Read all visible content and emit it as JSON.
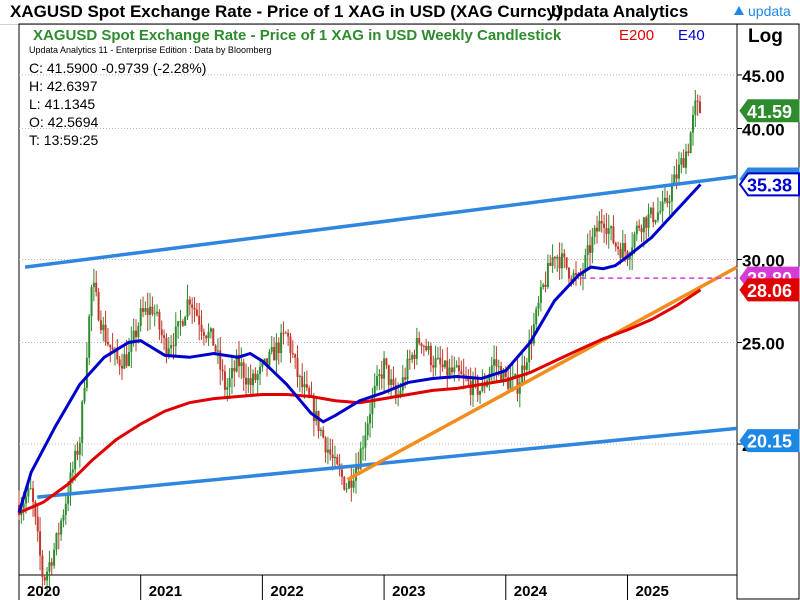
{
  "header": {
    "title": "XAGUSD Spot Exchange Rate - Price of 1 XAG in USD (XAG Curncy)",
    "vendor": "Updata Analytics",
    "logo": "updata"
  },
  "chart_data": {
    "type": "candlestick",
    "title": "XAGUSD Spot Exchange Rate - Price of 1 XAG in USD Weekly Candlestick",
    "subtitle": "Updata Analytics 11 - Enterprise Edition : Data by Bloomberg",
    "scale": "Log",
    "legend": [
      {
        "label": "E200",
        "color": "#e00000"
      },
      {
        "label": "E40",
        "color": "#0000cc"
      }
    ],
    "ohlc_readout": [
      "C: 41.5900  -0.9739 (-2.28%)",
      "H: 42.6397",
      "L: 41.1345",
      "O: 42.5694",
      "T: 13:59:25"
    ],
    "ylim": [
      15,
      46.5
    ],
    "y_ticks": [
      {
        "value": 20,
        "label": "20.00"
      },
      {
        "value": 25,
        "label": "25.00"
      },
      {
        "value": 30,
        "label": "30.00"
      },
      {
        "value": 40,
        "label": "40.00"
      },
      {
        "value": 45,
        "label": "45.00"
      }
    ],
    "x_range": [
      2020.0,
      2025.9
    ],
    "x_ticks": [
      {
        "value": 2020.0,
        "label": "2020"
      },
      {
        "value": 2021.0,
        "label": "2021"
      },
      {
        "value": 2022.0,
        "label": "2022"
      },
      {
        "value": 2023.0,
        "label": "2023"
      },
      {
        "value": 2024.0,
        "label": "2024"
      },
      {
        "value": 2025.0,
        "label": "2025"
      }
    ],
    "grid": true,
    "price_path": [
      [
        2020.0,
        17.5
      ],
      [
        2020.1,
        18.0
      ],
      [
        2020.2,
        14.8
      ],
      [
        2020.3,
        16.0
      ],
      [
        2020.4,
        18.0
      ],
      [
        2020.5,
        20.2
      ],
      [
        2020.55,
        24.0
      ],
      [
        2020.6,
        28.5
      ],
      [
        2020.7,
        25.5
      ],
      [
        2020.8,
        24.0
      ],
      [
        2020.9,
        24.2
      ],
      [
        2021.0,
        26.5
      ],
      [
        2021.1,
        27.0
      ],
      [
        2021.2,
        24.8
      ],
      [
        2021.3,
        25.5
      ],
      [
        2021.4,
        27.7
      ],
      [
        2021.5,
        26.0
      ],
      [
        2021.6,
        25.0
      ],
      [
        2021.7,
        22.5
      ],
      [
        2021.8,
        24.0
      ],
      [
        2021.9,
        22.8
      ],
      [
        2022.0,
        23.5
      ],
      [
        2022.1,
        24.5
      ],
      [
        2022.2,
        25.5
      ],
      [
        2022.3,
        23.0
      ],
      [
        2022.4,
        21.8
      ],
      [
        2022.5,
        20.3
      ],
      [
        2022.6,
        19.0
      ],
      [
        2022.7,
        18.2
      ],
      [
        2022.8,
        19.5
      ],
      [
        2022.9,
        22.0
      ],
      [
        2023.0,
        23.8
      ],
      [
        2023.1,
        22.0
      ],
      [
        2023.2,
        23.8
      ],
      [
        2023.3,
        25.3
      ],
      [
        2023.4,
        24.0
      ],
      [
        2023.5,
        23.5
      ],
      [
        2023.6,
        23.3
      ],
      [
        2023.7,
        22.8
      ],
      [
        2023.8,
        22.5
      ],
      [
        2023.9,
        24.0
      ],
      [
        2024.0,
        23.0
      ],
      [
        2024.1,
        22.8
      ],
      [
        2024.2,
        25.0
      ],
      [
        2024.3,
        28.0
      ],
      [
        2024.4,
        30.5
      ],
      [
        2024.5,
        29.5
      ],
      [
        2024.6,
        28.5
      ],
      [
        2024.7,
        31.0
      ],
      [
        2024.8,
        33.0
      ],
      [
        2024.9,
        31.0
      ],
      [
        2025.0,
        30.5
      ],
      [
        2025.1,
        32.5
      ],
      [
        2025.2,
        33.0
      ],
      [
        2025.3,
        33.5
      ],
      [
        2025.4,
        36.0
      ],
      [
        2025.5,
        38.5
      ],
      [
        2025.56,
        42.0
      ],
      [
        2025.6,
        41.59
      ]
    ],
    "series": [
      {
        "name": "E200",
        "color": "#e00000",
        "points": [
          [
            2020.0,
            17.2
          ],
          [
            2020.2,
            17.6
          ],
          [
            2020.4,
            18.3
          ],
          [
            2020.6,
            19.3
          ],
          [
            2020.8,
            20.2
          ],
          [
            2021.0,
            20.9
          ],
          [
            2021.2,
            21.5
          ],
          [
            2021.4,
            21.9
          ],
          [
            2021.6,
            22.1
          ],
          [
            2021.8,
            22.2
          ],
          [
            2022.0,
            22.3
          ],
          [
            2022.2,
            22.3
          ],
          [
            2022.4,
            22.2
          ],
          [
            2022.6,
            22.0
          ],
          [
            2022.8,
            21.9
          ],
          [
            2023.0,
            22.1
          ],
          [
            2023.2,
            22.3
          ],
          [
            2023.4,
            22.5
          ],
          [
            2023.6,
            22.6
          ],
          [
            2023.8,
            22.8
          ],
          [
            2024.0,
            23.0
          ],
          [
            2024.2,
            23.4
          ],
          [
            2024.4,
            24.0
          ],
          [
            2024.6,
            24.6
          ],
          [
            2024.8,
            25.2
          ],
          [
            2025.0,
            25.7
          ],
          [
            2025.2,
            26.3
          ],
          [
            2025.4,
            27.1
          ],
          [
            2025.6,
            28.06
          ]
        ]
      },
      {
        "name": "E40",
        "color": "#0000cc",
        "points": [
          [
            2020.0,
            17.2
          ],
          [
            2020.1,
            18.8
          ],
          [
            2020.3,
            20.8
          ],
          [
            2020.5,
            22.8
          ],
          [
            2020.7,
            24.2
          ],
          [
            2020.9,
            25.0
          ],
          [
            2021.0,
            25.1
          ],
          [
            2021.2,
            24.3
          ],
          [
            2021.4,
            24.2
          ],
          [
            2021.6,
            24.4
          ],
          [
            2021.8,
            24.2
          ],
          [
            2021.9,
            24.4
          ],
          [
            2022.0,
            24.0
          ],
          [
            2022.2,
            22.8
          ],
          [
            2022.4,
            21.4
          ],
          [
            2022.5,
            21.0
          ],
          [
            2022.6,
            21.3
          ],
          [
            2022.8,
            22.0
          ],
          [
            2023.0,
            22.4
          ],
          [
            2023.2,
            22.9
          ],
          [
            2023.4,
            23.1
          ],
          [
            2023.6,
            23.2
          ],
          [
            2023.8,
            23.1
          ],
          [
            2024.0,
            23.5
          ],
          [
            2024.2,
            25.0
          ],
          [
            2024.4,
            27.4
          ],
          [
            2024.6,
            29.0
          ],
          [
            2024.7,
            29.5
          ],
          [
            2024.8,
            29.4
          ],
          [
            2024.9,
            29.6
          ],
          [
            2025.0,
            30.2
          ],
          [
            2025.2,
            31.5
          ],
          [
            2025.4,
            33.4
          ],
          [
            2025.6,
            35.38
          ]
        ]
      }
    ],
    "trendlines": [
      {
        "name": "upper-channel-line",
        "color": "#2e86de",
        "from": [
          2020.05,
          29.5
        ],
        "to": [
          2025.9,
          36.0
        ]
      },
      {
        "name": "lower-channel-line",
        "color": "#2e86de",
        "from": [
          2020.15,
          17.8
        ],
        "to": [
          2025.9,
          20.7
        ]
      },
      {
        "name": "rising-support-line",
        "color": "#f28c1c",
        "from": [
          2022.7,
          18.5
        ],
        "to": [
          2025.9,
          29.5
        ]
      },
      {
        "name": "horizontal-level-line",
        "color": "#d53cd5",
        "from": [
          2024.62,
          28.8
        ],
        "to": [
          2025.9,
          28.8
        ],
        "dashed": true
      }
    ],
    "price_labels": [
      {
        "value": 41.59,
        "label": "41.59",
        "color": "#2e8b2e",
        "text_color": "#ffffff"
      },
      {
        "value": 35.8,
        "label": "35.80",
        "color": "#2e86de",
        "text_color": "#ffffff",
        "partial": true
      },
      {
        "value": 35.38,
        "label": "35.38",
        "color": "#ffffff",
        "text_color": "#0000cc",
        "border": "#0000cc"
      },
      {
        "value": 28.8,
        "label": "28.80",
        "color": "#d53cd5",
        "text_color": "#ffffff",
        "partial": true
      },
      {
        "value": 28.06,
        "label": "28.06",
        "color": "#e00000",
        "text_color": "#ffffff"
      },
      {
        "value": 20.15,
        "label": "20.15",
        "color": "#1e88e5",
        "text_color": "#ffffff"
      }
    ],
    "candle_colors": {
      "up": "#2e8b2e",
      "down": "#c0392b"
    }
  }
}
